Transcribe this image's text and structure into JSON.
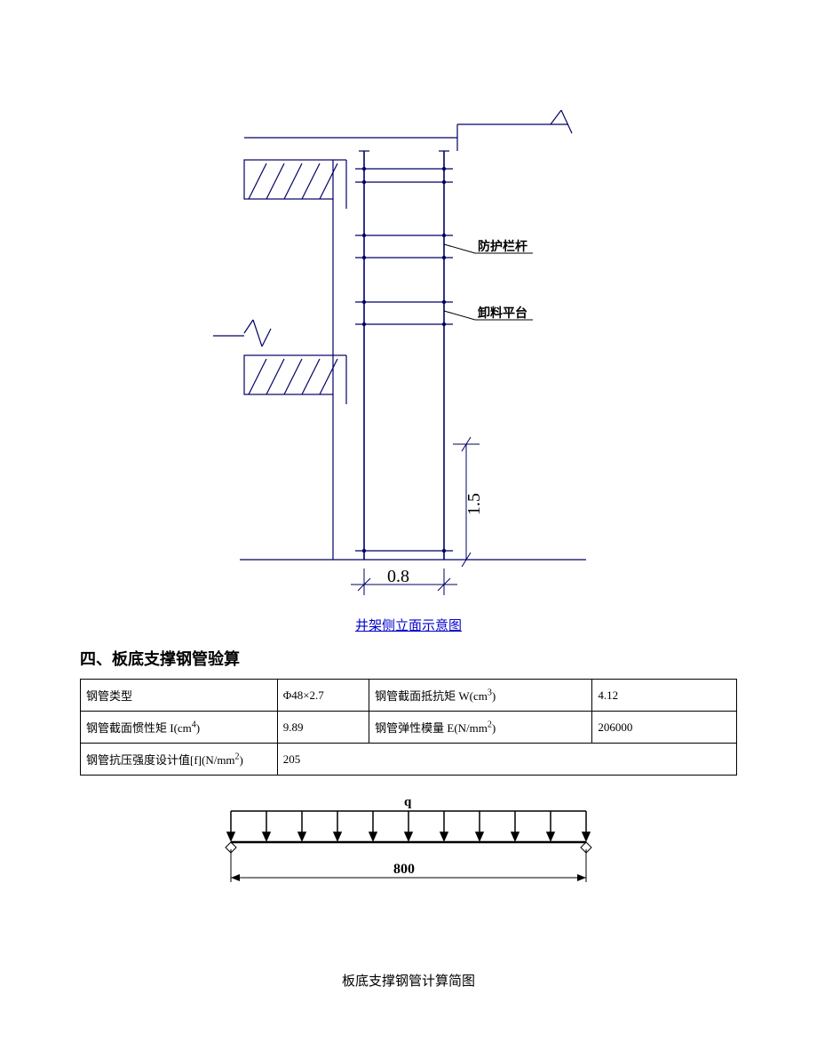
{
  "diagram1": {
    "caption": "井架侧立面示意图",
    "annotations": {
      "rail": "防护栏杆",
      "platform": "卸料平台"
    },
    "dimensions": {
      "width": "0.8",
      "height": "1.5"
    },
    "colors": {
      "line": "#000066",
      "text": "#000000",
      "caption": "#0000cc",
      "hatch": "#000000"
    }
  },
  "section_title": "四、板底支撑钢管验算",
  "table": {
    "rows": [
      [
        {
          "label": "钢管类型",
          "value": "Φ48×2.7"
        },
        {
          "label": "钢管截面抵抗矩 W(cm",
          "sup": "3",
          "label2": ")",
          "value": "4.12"
        }
      ],
      [
        {
          "label": "钢管截面惯性矩 I(cm",
          "sup": "4",
          "label2": ")",
          "value": "9.89"
        },
        {
          "label": "钢管弹性模量 E(N/mm",
          "sup": "2",
          "label2": ")",
          "value": "206000"
        }
      ],
      [
        {
          "label": "钢管抗压强度设计值[f](N/mm",
          "sup": "2",
          "label2": ")",
          "value": "205"
        }
      ]
    ]
  },
  "schematic": {
    "q_label": "q",
    "span_label": "800",
    "caption": "板底支撑钢管计算简图",
    "line_color": "#000000",
    "text_color": "#000000",
    "arrow_count": 11
  }
}
